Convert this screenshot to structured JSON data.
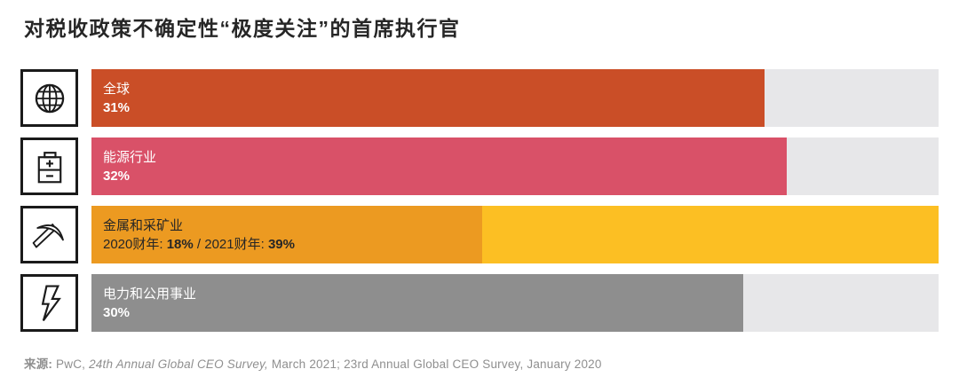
{
  "title": "对税收政策不确定性“极度关注”的首席执行官",
  "chart_data": {
    "type": "bar",
    "orientation": "horizontal",
    "title": "对税收政策不确定性“极度关注”的首席执行官",
    "unit": "percent",
    "scale_max_percent": 39,
    "track_color": "#e7e7e9",
    "categories": [
      "全球",
      "能源行业",
      "金属和采矿业",
      "电力和公用事业"
    ],
    "bars": [
      {
        "icon": "globe-icon",
        "label": "全球",
        "text_color": "#ffffff",
        "segments": [
          {
            "label": "",
            "value": 31,
            "color": "#ca4e27"
          }
        ],
        "value_parts": [
          {
            "text": "31%",
            "bold": true
          }
        ]
      },
      {
        "icon": "battery-icon",
        "label": "能源行业",
        "text_color": "#ffffff",
        "segments": [
          {
            "label": "",
            "value": 32,
            "color": "#d95168"
          }
        ],
        "value_parts": [
          {
            "text": "32%",
            "bold": true
          }
        ]
      },
      {
        "icon": "pickaxe-icon",
        "label": "金属和采矿业",
        "text_color": "#262626",
        "segments": [
          {
            "label": "2021财年",
            "value": 39,
            "color": "#fcbf23"
          },
          {
            "label": "2020财年",
            "value": 18,
            "color": "#ec9a21"
          }
        ],
        "value_parts": [
          {
            "text": "2020财年: ",
            "bold": false
          },
          {
            "text": "18%",
            "bold": true
          },
          {
            "text": " / 2021财年: ",
            "bold": false
          },
          {
            "text": "39%",
            "bold": true
          }
        ]
      },
      {
        "icon": "lightning-bolt-icon",
        "label": "电力和公用事业",
        "text_color": "#ffffff",
        "segments": [
          {
            "label": "",
            "value": 30,
            "color": "#8e8e8e"
          }
        ],
        "value_parts": [
          {
            "text": "30%",
            "bold": true
          }
        ]
      }
    ]
  },
  "source": {
    "label": "来源:",
    "part1": " PwC, ",
    "italic": "24th Annual Global CEO Survey,",
    "part2": " March 2021; 23rd Annual Global CEO Survey, January 2020"
  }
}
